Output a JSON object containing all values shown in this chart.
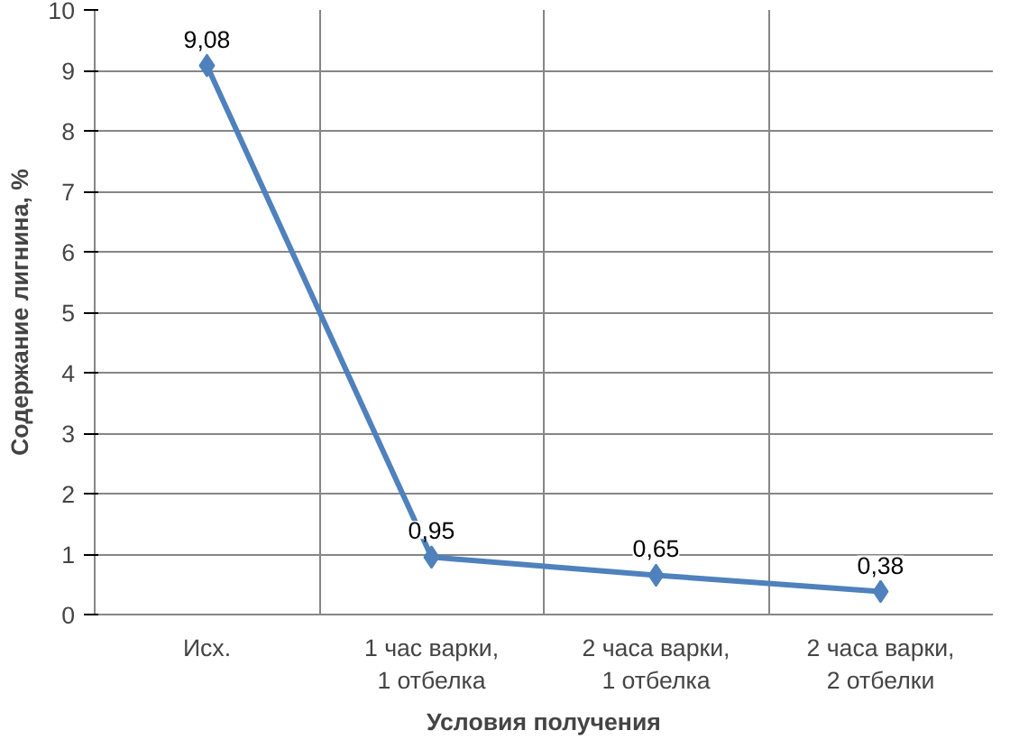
{
  "chart_data": {
    "type": "line",
    "xlabel": "Условия получения",
    "ylabel": "Содержание лигнина, %",
    "categories": [
      "Исх.",
      "1 час варки, 1 отбелка",
      "2 часа варки, 1 отбелка",
      "2 часа варки, 2 отбелки"
    ],
    "series": [
      {
        "color": "#4f81bd",
        "values": [
          9.08,
          0.95,
          0.65,
          0.38
        ]
      }
    ],
    "value_labels": [
      "9,08",
      "0,95",
      "0,65",
      "0,38"
    ],
    "ylim": [
      0,
      10
    ],
    "yticks": [
      0,
      1,
      2,
      3,
      4,
      5,
      6,
      7,
      8,
      9,
      10
    ],
    "grid": true,
    "marker": "diamond",
    "line_style": "solid"
  }
}
